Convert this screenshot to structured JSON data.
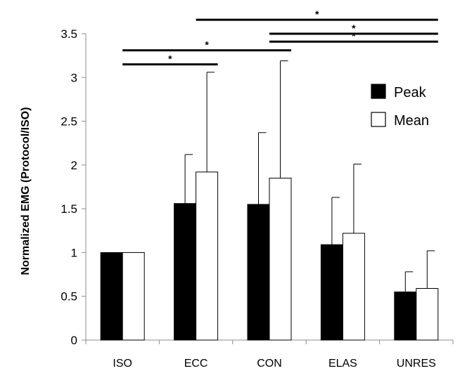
{
  "chart_data": {
    "type": "bar",
    "title": "",
    "xlabel": "",
    "ylabel": "Normalized EMG (Protocol/ISO)",
    "ylim": [
      0,
      3.5
    ],
    "yticks": [
      0,
      0.5,
      1,
      1.5,
      2,
      2.5,
      3,
      3.5
    ],
    "ytick_labels": [
      "0",
      "0.5",
      "1",
      "1.5",
      "2",
      "2.5",
      "3",
      "3.5"
    ],
    "categories": [
      "ISO",
      "ECC",
      "CON",
      "ELAS",
      "UNRES"
    ],
    "series": [
      {
        "name": "Peak",
        "color": "#000000",
        "values": [
          1.0,
          1.56,
          1.55,
          1.09,
          0.55
        ],
        "error_upper": [
          0.0,
          0.56,
          0.82,
          0.54,
          0.23
        ]
      },
      {
        "name": "Mean",
        "color": "#ffffff",
        "values": [
          1.0,
          1.92,
          1.85,
          1.22,
          0.59
        ],
        "error_upper": [
          0.0,
          1.14,
          1.34,
          0.79,
          0.43
        ]
      }
    ],
    "legend": {
      "placement": "top-right"
    },
    "grid": false,
    "significance": [
      {
        "from": "ECC",
        "to": "UNRES",
        "y": 3.66,
        "label": "*"
      },
      {
        "from": "CON",
        "to": "UNRES",
        "y": 3.5,
        "label": "*"
      },
      {
        "from": "ISO",
        "to": "CON",
        "y": 3.31,
        "label": "*"
      },
      {
        "from": "CON",
        "to": "UNRES",
        "y": 3.41,
        "label": "*"
      },
      {
        "from": "ISO",
        "to": "ECC",
        "y": 3.15,
        "label": "*"
      }
    ]
  }
}
